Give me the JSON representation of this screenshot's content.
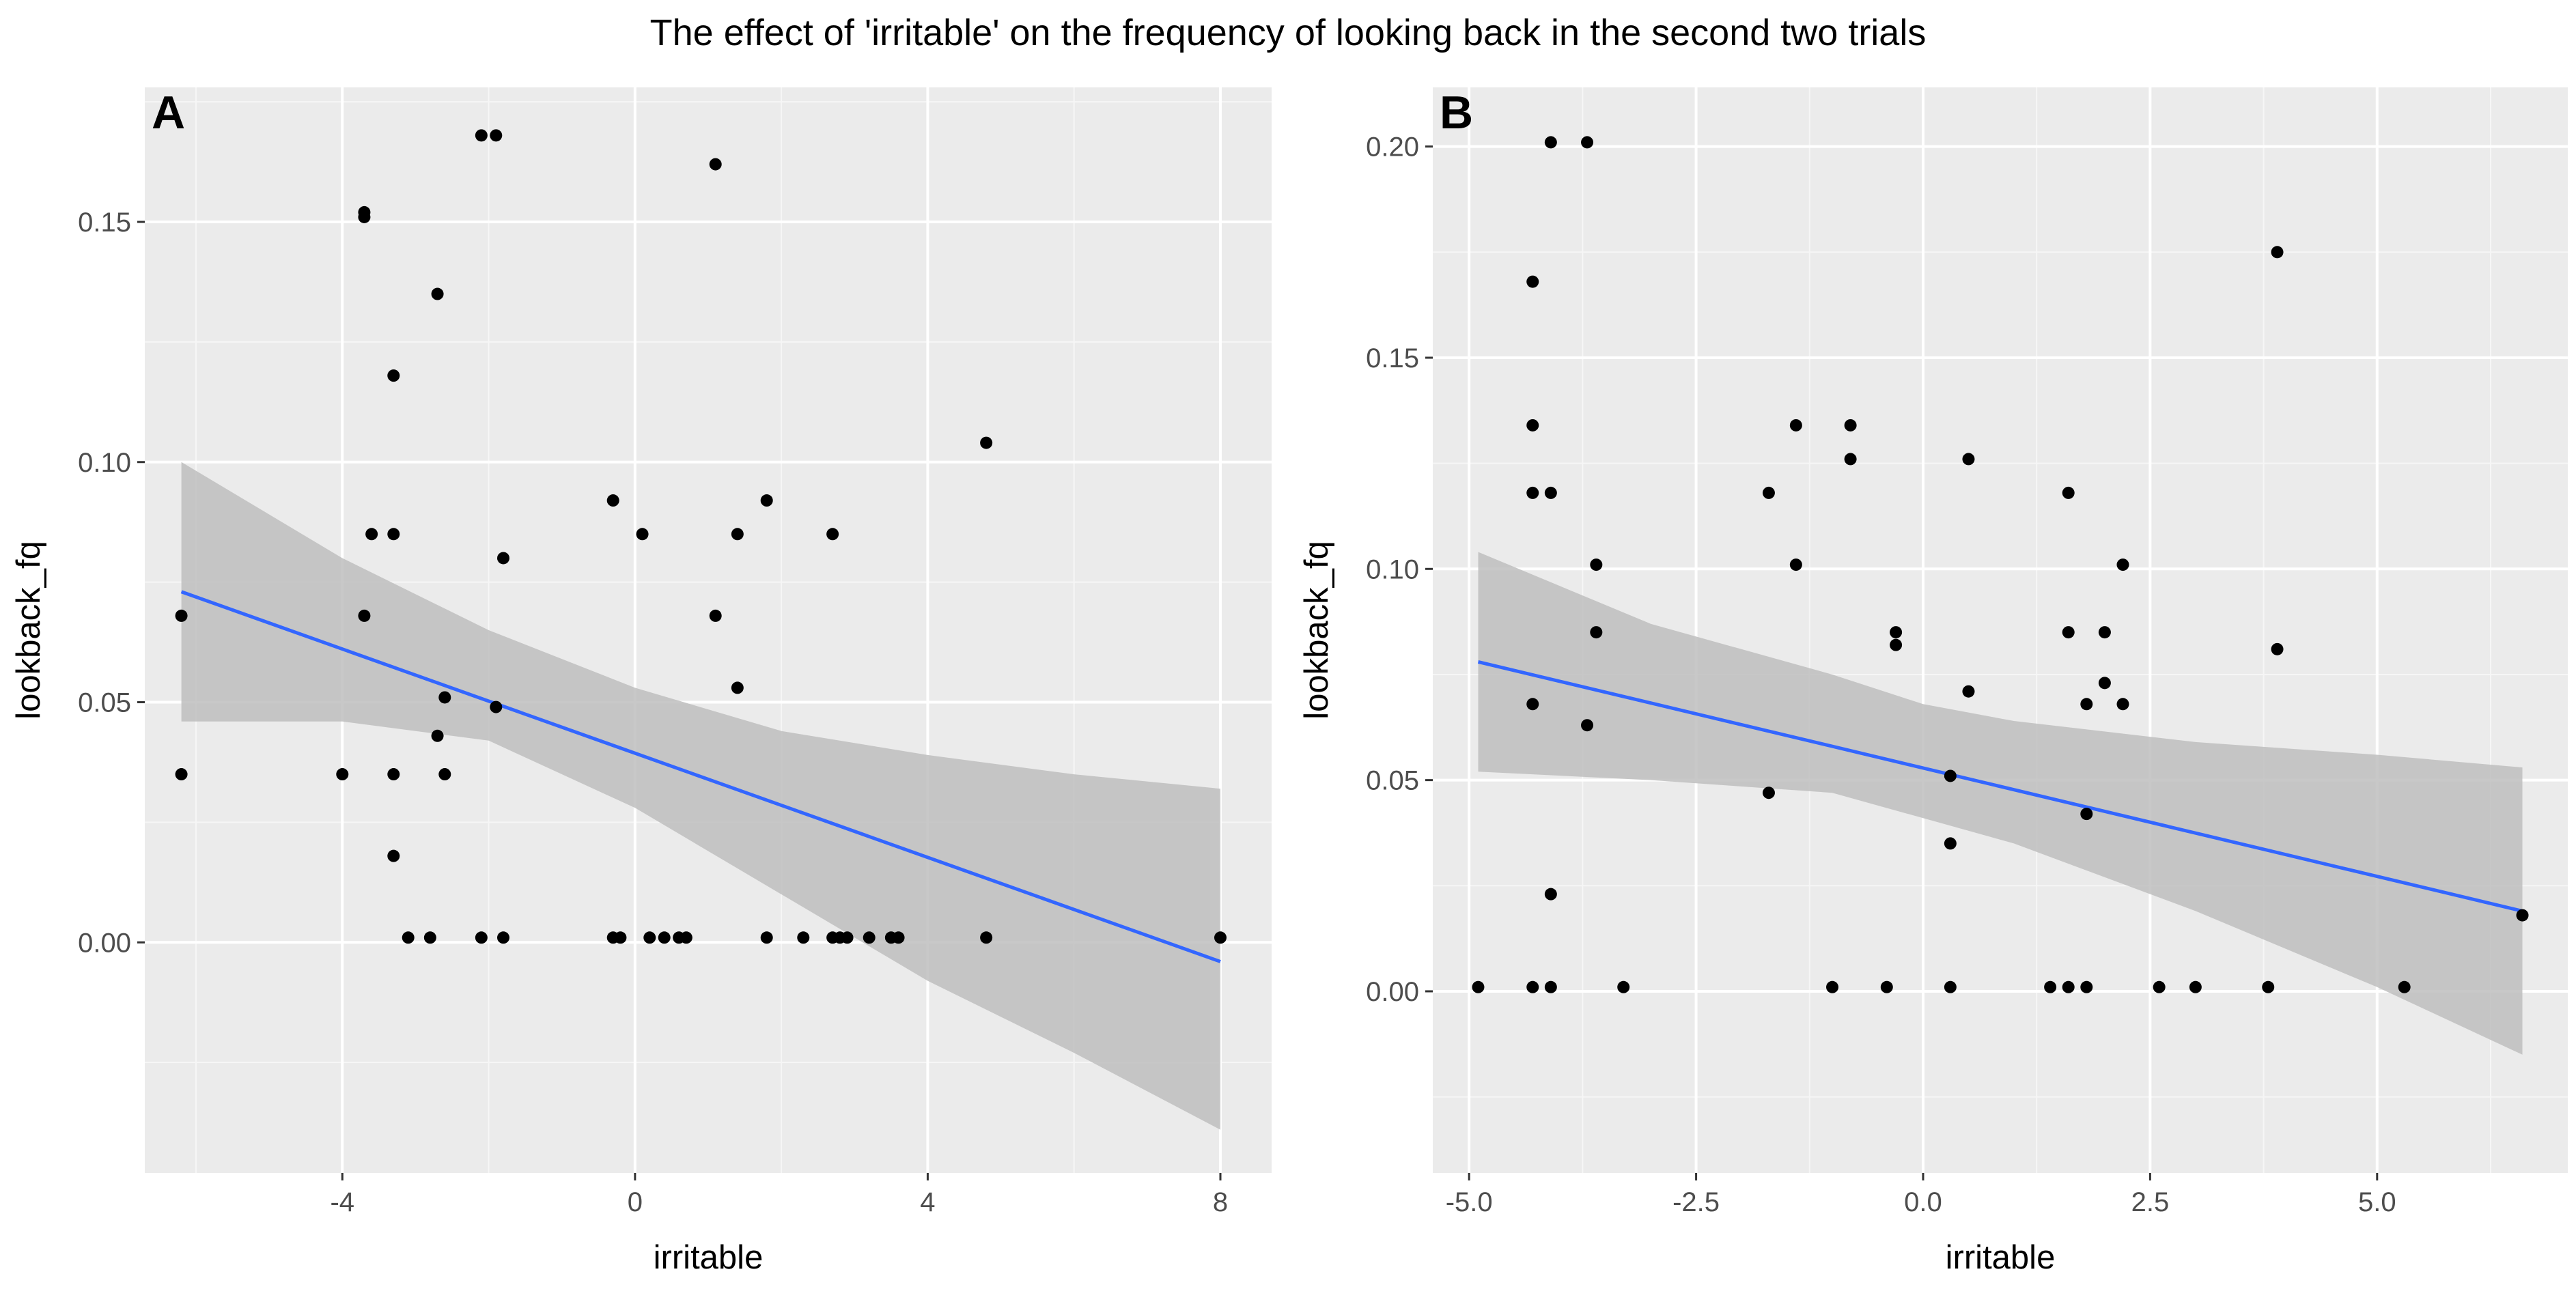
{
  "chart_data": {
    "title": "The effect of 'irritable' on the frequency of looking back in the second two trials",
    "panels": [
      {
        "type": "scatter",
        "label": "A",
        "xlabel": "irritable",
        "ylabel": "lookback_fq",
        "xlim": [
          -6.7,
          8.7
        ],
        "ylim": [
          -0.048,
          0.178
        ],
        "x_ticks": [
          -4,
          0,
          4,
          8
        ],
        "x_tick_labels": [
          "-4",
          "0",
          "4",
          "8"
        ],
        "y_ticks": [
          0.0,
          0.05,
          0.1,
          0.15
        ],
        "y_tick_labels": [
          "0.00",
          "0.05",
          "0.10",
          "0.15"
        ],
        "grid": true,
        "points": [
          [
            -6.2,
            0.068
          ],
          [
            -6.2,
            0.035
          ],
          [
            -4.0,
            0.035
          ],
          [
            -3.7,
            0.152
          ],
          [
            -3.7,
            0.151
          ],
          [
            -3.6,
            0.085
          ],
          [
            -3.7,
            0.068
          ],
          [
            -3.3,
            0.118
          ],
          [
            -3.3,
            0.085
          ],
          [
            -3.3,
            0.035
          ],
          [
            -3.3,
            0.018
          ],
          [
            -3.1,
            0.001
          ],
          [
            -2.8,
            0.001
          ],
          [
            -2.7,
            0.135
          ],
          [
            -2.6,
            0.051
          ],
          [
            -2.7,
            0.043
          ],
          [
            -2.6,
            0.035
          ],
          [
            -2.1,
            0.168
          ],
          [
            -1.9,
            0.168
          ],
          [
            -2.1,
            0.001
          ],
          [
            -1.8,
            0.08
          ],
          [
            -1.9,
            0.049
          ],
          [
            -1.8,
            0.001
          ],
          [
            -0.3,
            0.092
          ],
          [
            -0.3,
            0.001
          ],
          [
            -0.2,
            0.001
          ],
          [
            0.1,
            0.085
          ],
          [
            0.2,
            0.001
          ],
          [
            0.4,
            0.001
          ],
          [
            0.6,
            0.001
          ],
          [
            0.7,
            0.001
          ],
          [
            1.1,
            0.162
          ],
          [
            1.1,
            0.068
          ],
          [
            1.4,
            0.085
          ],
          [
            1.4,
            0.053
          ],
          [
            1.8,
            0.092
          ],
          [
            1.8,
            0.001
          ],
          [
            2.3,
            0.001
          ],
          [
            2.7,
            0.085
          ],
          [
            2.7,
            0.001
          ],
          [
            2.8,
            0.001
          ],
          [
            2.9,
            0.001
          ],
          [
            3.2,
            0.001
          ],
          [
            3.5,
            0.001
          ],
          [
            3.6,
            0.001
          ],
          [
            4.8,
            0.104
          ],
          [
            4.8,
            0.001
          ],
          [
            8.0,
            0.001
          ]
        ],
        "fit_line": {
          "x": [
            -6.2,
            8.0
          ],
          "y": [
            0.073,
            -0.004
          ],
          "color": "#3366ff"
        },
        "confidence_band": {
          "x": [
            -6.2,
            -4.0,
            -2.0,
            0.0,
            2.0,
            4.0,
            6.0,
            8.0
          ],
          "upper": [
            0.1,
            0.08,
            0.065,
            0.053,
            0.044,
            0.039,
            0.035,
            0.032
          ],
          "lower": [
            0.046,
            0.046,
            0.042,
            0.028,
            0.01,
            -0.008,
            -0.023,
            -0.039
          ],
          "color": "#bebebe"
        }
      },
      {
        "type": "scatter",
        "label": "B",
        "xlabel": "irritable",
        "ylabel": "lookback_fq",
        "xlim": [
          -5.4,
          7.1
        ],
        "ylim": [
          -0.043,
          0.214
        ],
        "x_ticks": [
          -5.0,
          -2.5,
          0.0,
          2.5,
          5.0
        ],
        "x_tick_labels": [
          "-5.0",
          "-2.5",
          "0.0",
          "2.5",
          "5.0"
        ],
        "y_ticks": [
          0.0,
          0.05,
          0.1,
          0.15,
          0.2
        ],
        "y_tick_labels": [
          "0.00",
          "0.05",
          "0.10",
          "0.15",
          "0.20"
        ],
        "grid": true,
        "points": [
          [
            -4.9,
            0.001
          ],
          [
            -4.3,
            0.168
          ],
          [
            -4.3,
            0.134
          ],
          [
            -4.3,
            0.118
          ],
          [
            -4.3,
            0.068
          ],
          [
            -4.3,
            0.001
          ],
          [
            -4.1,
            0.201
          ],
          [
            -4.1,
            0.118
          ],
          [
            -4.1,
            0.023
          ],
          [
            -4.1,
            0.001
          ],
          [
            -3.7,
            0.201
          ],
          [
            -3.7,
            0.063
          ],
          [
            -3.6,
            0.101
          ],
          [
            -3.6,
            0.085
          ],
          [
            -3.3,
            0.001
          ],
          [
            -1.7,
            0.118
          ],
          [
            -1.7,
            0.047
          ],
          [
            -1.4,
            0.134
          ],
          [
            -1.4,
            0.101
          ],
          [
            -1.0,
            0.001
          ],
          [
            -0.8,
            0.134
          ],
          [
            -0.8,
            0.126
          ],
          [
            -0.4,
            0.001
          ],
          [
            -0.3,
            0.085
          ],
          [
            -0.3,
            0.082
          ],
          [
            0.3,
            0.051
          ],
          [
            0.3,
            0.035
          ],
          [
            0.3,
            0.001
          ],
          [
            0.5,
            0.126
          ],
          [
            0.5,
            0.071
          ],
          [
            1.4,
            0.001
          ],
          [
            1.6,
            0.118
          ],
          [
            1.6,
            0.085
          ],
          [
            1.6,
            0.001
          ],
          [
            1.8,
            0.068
          ],
          [
            1.8,
            0.042
          ],
          [
            1.8,
            0.001
          ],
          [
            2.0,
            0.085
          ],
          [
            2.0,
            0.073
          ],
          [
            2.2,
            0.101
          ],
          [
            2.2,
            0.068
          ],
          [
            2.6,
            0.001
          ],
          [
            3.0,
            0.001
          ],
          [
            3.8,
            0.001
          ],
          [
            3.9,
            0.175
          ],
          [
            3.9,
            0.081
          ],
          [
            5.3,
            0.001
          ],
          [
            6.6,
            0.018
          ]
        ],
        "fit_line": {
          "x": [
            -4.9,
            6.6
          ],
          "y": [
            0.078,
            0.019
          ],
          "color": "#3366ff"
        },
        "confidence_band": {
          "x": [
            -4.9,
            -3.0,
            -1.0,
            0.0,
            1.0,
            3.0,
            5.0,
            6.6
          ],
          "upper": [
            0.104,
            0.087,
            0.075,
            0.068,
            0.064,
            0.059,
            0.056,
            0.053
          ],
          "lower": [
            0.052,
            0.05,
            0.047,
            0.041,
            0.035,
            0.019,
            0.001,
            -0.015
          ],
          "color": "#bebebe"
        }
      }
    ]
  }
}
